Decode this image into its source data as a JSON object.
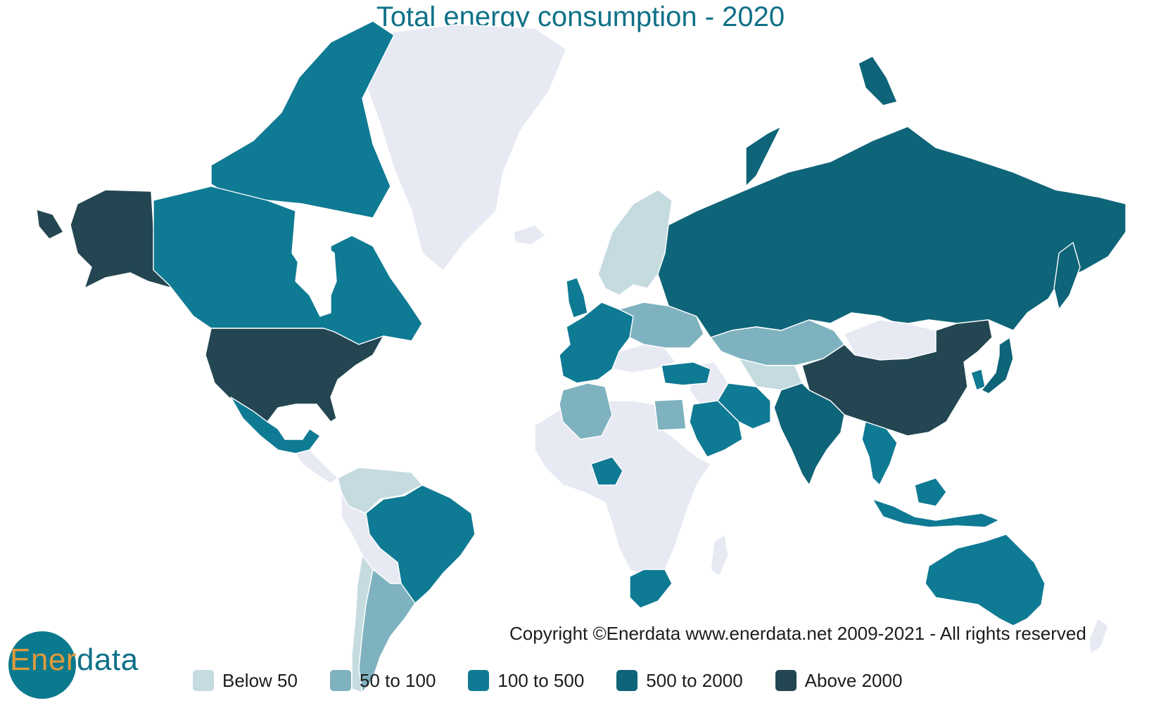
{
  "title": "Total energy consumption - 2020",
  "copyright": "Copyright ©Enerdata www.enerdata.net 2009-2021 - All rights reserved",
  "logo": {
    "part1": "Ener",
    "part2": "data"
  },
  "colors": {
    "no_data": "#e7e9f3",
    "below_50": "#c5dbe0",
    "50_to_100": "#7fb2bf",
    "100_to_500": "#0f7a93",
    "500_to_2000": "#0e6478",
    "above_2000": "#234652"
  },
  "legend": [
    {
      "label": "Below 50",
      "color": "#c5dbe0"
    },
    {
      "label": "50 to 100",
      "color": "#7fb2bf"
    },
    {
      "label": "100 to 500",
      "color": "#0f7a93"
    },
    {
      "label": "500 to 2000",
      "color": "#0e6478"
    },
    {
      "label": "Above 2000",
      "color": "#234652"
    }
  ],
  "map_data": {
    "scheme": "choropleth",
    "classes": {
      "above_2000": [
        "usa",
        "china"
      ],
      "500_to_2000": [
        "russia",
        "india",
        "japan"
      ],
      "100_to_500": [
        "canada",
        "mexico",
        "brazil",
        "australia",
        "indonesia",
        "saudi-arabia",
        "iran",
        "south-africa",
        "nigeria",
        "turkey",
        "south-korea",
        "france",
        "germany",
        "united-kingdom",
        "italy",
        "spain",
        "thailand"
      ],
      "50_to_100": [
        "argentina",
        "kazakhstan",
        "ukraine",
        "egypt",
        "algeria",
        "poland"
      ],
      "below_50": [
        "norway",
        "sweden",
        "finland",
        "colombia",
        "venezuela",
        "uzbekistan",
        "chile",
        "romania"
      ],
      "no_data": [
        "greenland",
        "africa-other",
        "south-america-other",
        "middle-east-other",
        "mongolia",
        "southeast-asia-other",
        "europe-other"
      ]
    }
  }
}
